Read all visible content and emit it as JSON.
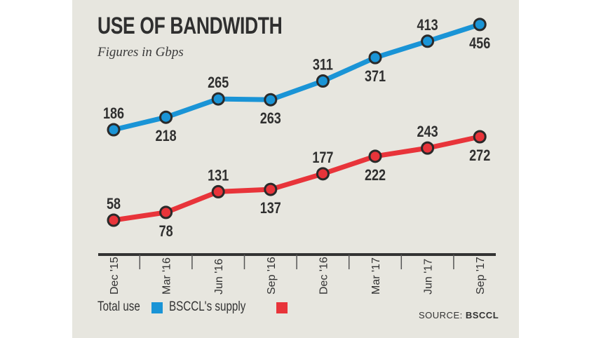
{
  "chart_data": {
    "type": "line",
    "title": "USE OF BANDWIDTH",
    "subtitle": "Figures in Gbps",
    "categories": [
      "Dec '15",
      "Mar '16",
      "Jun '16",
      "Sep '16",
      "Dec '16",
      "Mar '17",
      "Jun '17",
      "Sep '17"
    ],
    "series": [
      {
        "name": "Total use",
        "color": "#1a94d6",
        "values": [
          186,
          218,
          265,
          263,
          311,
          371,
          413,
          456
        ]
      },
      {
        "name": "BSCCL's supply",
        "color": "#e8343a",
        "values": [
          58,
          78,
          131,
          137,
          177,
          222,
          243,
          272
        ]
      }
    ],
    "grid": false,
    "legend": "bottom-left",
    "source_label": "SOURCE:",
    "source": "BSCCL"
  }
}
